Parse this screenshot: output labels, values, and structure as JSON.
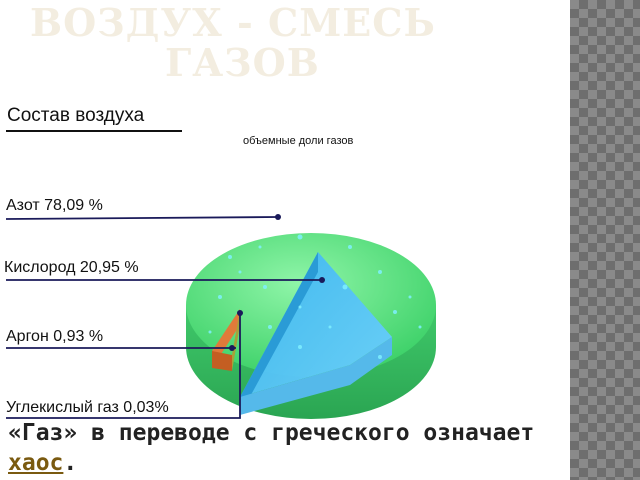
{
  "slide": {
    "title_line1": "ВОЗДУХ - СМЕСЬ",
    "title_line2": "ГАЗОВ"
  },
  "figure": {
    "title": "Состав воздуха",
    "subtitle": "объемные доли газов",
    "labels": {
      "nitrogen": "Азот 78,09 %",
      "oxygen": "Кислород 20,95 %",
      "argon": "Аргон 0,93 %",
      "co2": "Углекислый газ 0,03%"
    },
    "colors": {
      "nitrogen": "#55e680",
      "oxygen": "#3fb7f0",
      "argon": "#e07a3a",
      "co2": "#a6a23a"
    }
  },
  "caption": {
    "before": "«Газ» в переводе с греческого означает ",
    "keyword": "хаос",
    "after": "."
  }
}
